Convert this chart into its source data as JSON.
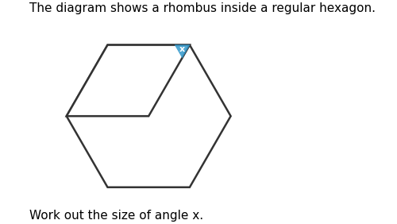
{
  "title": "The diagram shows a rhombus inside a regular hexagon.",
  "subtitle": "Work out the size of angle x.",
  "title_fontsize": 11,
  "subtitle_fontsize": 11,
  "background_color": "#ffffff",
  "hexagon_color": "#ffffff",
  "hexagon_edge_color": "#333333",
  "rhombus_color": "#ffffff",
  "rhombus_edge_color": "#333333",
  "highlight_color": "#3399cc",
  "x_label": "x",
  "line_width": 1.8
}
